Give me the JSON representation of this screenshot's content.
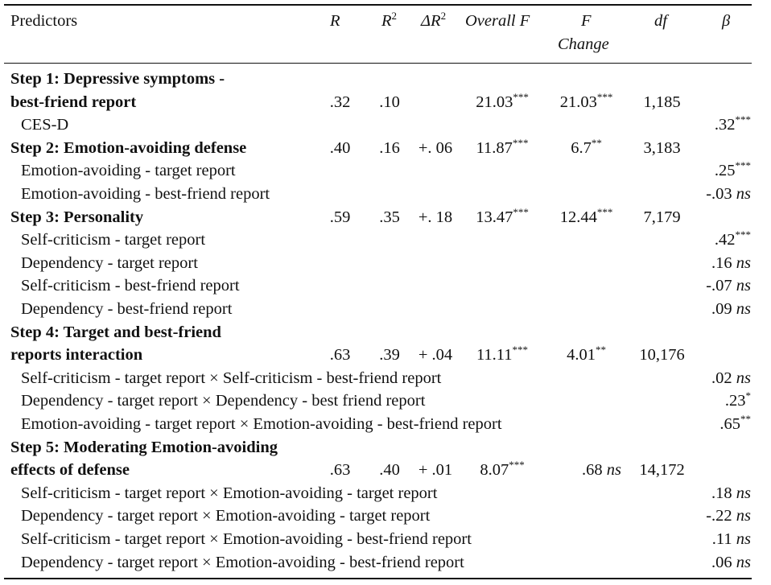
{
  "headers": {
    "predictors": "Predictors",
    "r": "R",
    "r2": "R",
    "r2_sup": "2",
    "delta_r2": "ΔR",
    "delta_r2_sup": "2",
    "overall_f": "Overall F",
    "f_change_line1": "F",
    "f_change_line2": "Change",
    "df": "df",
    "beta": "β"
  },
  "rows": [
    {
      "label": "Step 1: Depressive symptoms -",
      "bold": true
    },
    {
      "label": "best-friend report",
      "bold": true,
      "r": ".32",
      "r2": ".10",
      "delta": "",
      "f": "21.03",
      "f_sig": "***",
      "fc": "21.03",
      "fc_sig": "***",
      "df": "1,185"
    },
    {
      "label": "CES-D",
      "beta": ".32",
      "beta_sig": "***"
    },
    {
      "label": "Step 2: Emotion-avoiding defense",
      "bold": true,
      "r": ".40",
      "r2": ".16",
      "delta": "+. 06",
      "f": "11.87",
      "f_sig": "***",
      "fc": "6.7",
      "fc_sig": "**",
      "df": "3,183"
    },
    {
      "label": "Emotion-avoiding - target report",
      "beta": ".25",
      "beta_sig": "***"
    },
    {
      "label": "Emotion-avoiding - best-friend report",
      "beta": "-.03",
      "beta_ns": "ns"
    },
    {
      "label": "Step 3: Personality",
      "bold": true,
      "r": ".59",
      "r2": ".35",
      "delta": "+. 18",
      "f": "13.47",
      "f_sig": "***",
      "fc": "12.44",
      "fc_sig": "***",
      "df": "7,179"
    },
    {
      "label": "Self-criticism - target report",
      "beta": ".42",
      "beta_sig": "***"
    },
    {
      "label": "Dependency - target report",
      "beta": ".16",
      "beta_ns": "ns"
    },
    {
      "label": "Self-criticism - best-friend report",
      "beta": "-.07",
      "beta_ns": "ns"
    },
    {
      "label": "Dependency - best-friend report",
      "beta": ".09",
      "beta_ns": "ns"
    },
    {
      "label": "Step 4: Target and best-friend",
      "bold": true
    },
    {
      "label": "reports interaction",
      "bold": true,
      "r": ".63",
      "r2": ".39",
      "delta": "+ .04",
      "f": "11.11",
      "f_sig": "***",
      "fc": "4.01",
      "fc_sig": "**",
      "df": "10,176"
    },
    {
      "label": "Self-criticism - target report × Self-criticism - best-friend report",
      "beta": ".02",
      "beta_ns": "ns"
    },
    {
      "label": "Dependency - target report × Dependency - best friend report",
      "beta": ".23",
      "beta_sig": "*"
    },
    {
      "label": "Emotion-avoiding - target report × Emotion-avoiding - best-friend report",
      "beta": ".65",
      "beta_sig": "**"
    },
    {
      "label": "Step 5: Moderating Emotion-avoiding",
      "bold": true
    },
    {
      "label": "effects of defense",
      "bold": true,
      "r": ".63",
      "r2": ".40",
      "delta": "+ .01",
      "f": "8.07",
      "f_sig": "***",
      "fc": ".68",
      "fc_ns": "ns",
      "df": "14,172"
    },
    {
      "label": "Self-criticism - target report × Emotion-avoiding - target report",
      "beta": ".18",
      "beta_ns": "ns"
    },
    {
      "label": "Dependency - target report × Emotion-avoiding - target report",
      "beta": "-.22",
      "beta_ns": "ns"
    },
    {
      "label": "Self-criticism - target report × Emotion-avoiding - best-friend report",
      "beta": ".11",
      "beta_ns": "ns"
    },
    {
      "label": "Dependency - target report × Emotion-avoiding - best-friend report",
      "beta": ".06",
      "beta_ns": "ns"
    }
  ]
}
